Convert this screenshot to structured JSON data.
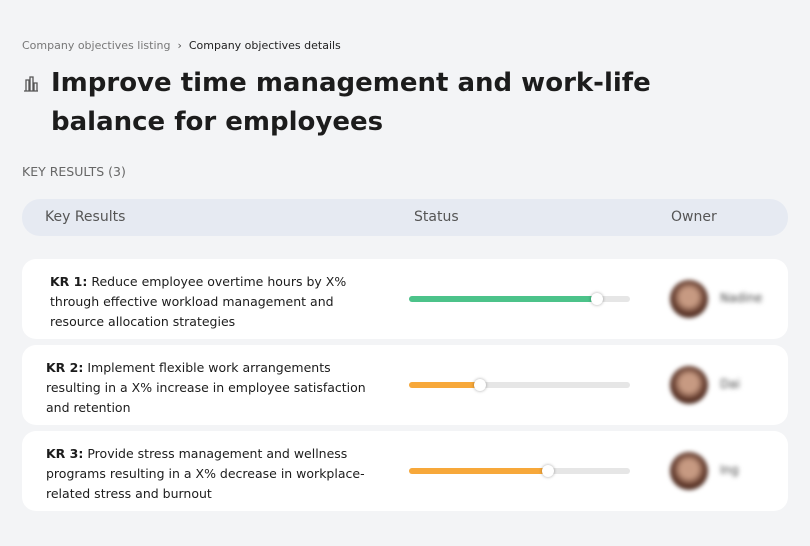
{
  "breadcrumb": {
    "parent": "Company objectives listing",
    "current": "Company objectives details"
  },
  "header": {
    "title": "Improve time management and work-life balance for employees"
  },
  "section_label": "KEY RESULTS (3)",
  "table": {
    "columns": [
      "Key Results",
      "Status",
      "Owner"
    ],
    "rows": [
      {
        "label": "KR 1:",
        "text": "Reduce employee overtime hours by X% through effective workload management and resource allocation strategies",
        "progress": 85,
        "color": "#4cc38a",
        "owner": "Nadine"
      },
      {
        "label": "KR 2:",
        "text": "Implement flexible work arrangements resulting in a X% increase in employee satisfaction and retention",
        "progress": 32,
        "color": "#f7a83a",
        "owner": "Dai"
      },
      {
        "label": "KR 3:",
        "text": "Provide stress management and wellness programs resulting in a X% decrease in workplace-related stress and burnout",
        "progress": 63,
        "color": "#f7a83a",
        "owner": "Ing"
      }
    ]
  }
}
